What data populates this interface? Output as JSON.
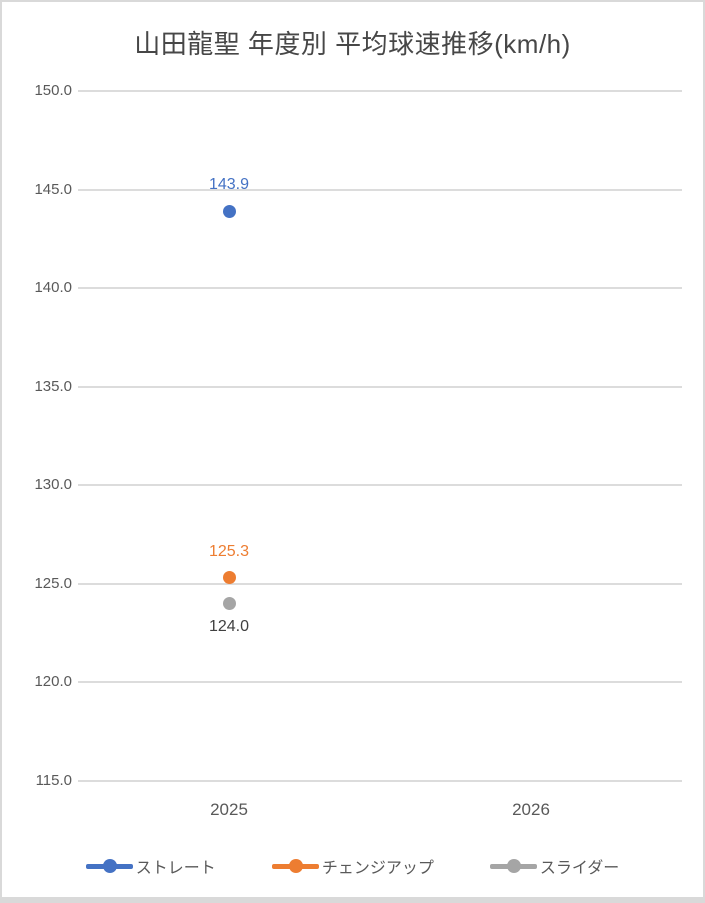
{
  "window": {
    "background": "#ffffff",
    "frame_color": "#d9d9d9"
  },
  "chart_data": {
    "type": "line",
    "title": "山田龍聖 年度別 平均球速推移(km/h)",
    "categories": [
      "2025",
      "2026"
    ],
    "series": [
      {
        "name": "ストレート",
        "color": "#4472C4",
        "values": [
          143.9,
          null
        ],
        "label_position": "above",
        "label_color": "#4472C4"
      },
      {
        "name": "チェンジアップ",
        "color": "#ED7D31",
        "values": [
          125.3,
          null
        ],
        "label_position": "above",
        "label_color": "#ED7D31"
      },
      {
        "name": "スライダー",
        "color": "#A5A5A5",
        "values": [
          124.0,
          null
        ],
        "label_position": "below",
        "label_color": "#404040"
      }
    ],
    "ylim": [
      115,
      150
    ],
    "ytick_step": 5,
    "ytick_labels": [
      "150.0",
      "145.0",
      "140.0",
      "135.0",
      "130.0",
      "125.0",
      "120.0",
      "115.0"
    ],
    "data_labels": [
      "143.9",
      "125.3",
      "124.0"
    ],
    "grid": true,
    "gridline_color": "#dcdcdc",
    "axis_text_color": "#595959",
    "title_color": "#474747",
    "legend_position": "bottom"
  }
}
